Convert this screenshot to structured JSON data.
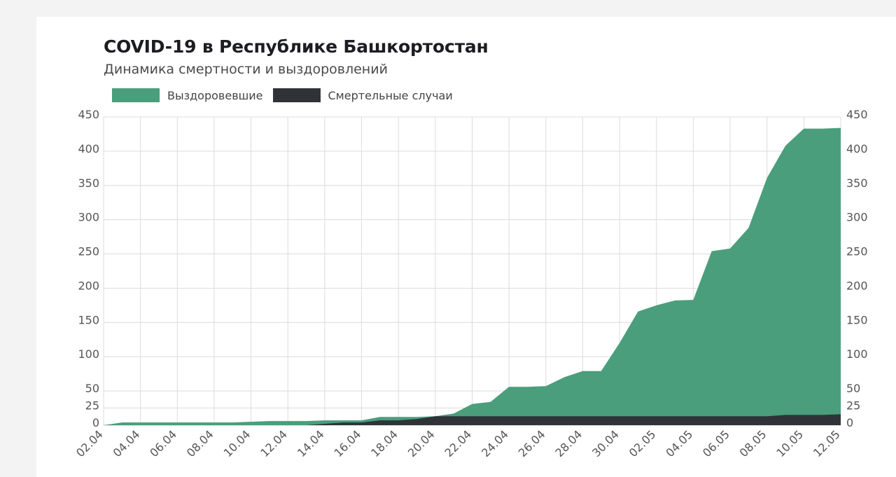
{
  "title": "COVID-19 в Республике Башкортостан",
  "subtitle": "Динамика смертности и выздоровлений",
  "legend": {
    "recovered": "Выздоровевшие",
    "deaths": "Смертельные случаи"
  },
  "colors": {
    "recovered": "#4a9e7c",
    "deaths": "#2f3338",
    "grid": "#dcdcdc"
  },
  "chart_data": {
    "type": "area",
    "title": "COVID-19 в Республике Башкортостан",
    "subtitle": "Динамика смертности и выздоровлений",
    "x": [
      "02.04",
      "03.04",
      "04.04",
      "05.04",
      "06.04",
      "07.04",
      "08.04",
      "09.04",
      "10.04",
      "11.04",
      "12.04",
      "13.04",
      "14.04",
      "15.04",
      "16.04",
      "17.04",
      "18.04",
      "19.04",
      "20.04",
      "21.04",
      "22.04",
      "23.04",
      "24.04",
      "25.04",
      "26.04",
      "27.04",
      "28.04",
      "29.04",
      "30.04",
      "01.05",
      "02.05",
      "03.05",
      "04.05",
      "05.05",
      "06.05",
      "07.05",
      "08.05",
      "09.05",
      "10.05",
      "11.05",
      "12.05"
    ],
    "x_tick_labels": [
      "02.04",
      "04.04",
      "06.04",
      "08.04",
      "10.04",
      "12.04",
      "14.04",
      "16.04",
      "18.04",
      "20.04",
      "22.04",
      "24.04",
      "26.04",
      "28.04",
      "30.04",
      "02.05",
      "04.05",
      "06.05",
      "08.05",
      "10.05",
      "12.05"
    ],
    "series": [
      {
        "name": "Выздоровевшие",
        "values": [
          0,
          4,
          4,
          4,
          4,
          4,
          4,
          4,
          5,
          6,
          6,
          6,
          7,
          7,
          7,
          12,
          12,
          12,
          13,
          17,
          31,
          34,
          56,
          56,
          57,
          70,
          79,
          79,
          120,
          166,
          175,
          182,
          183,
          254,
          258,
          288,
          361,
          408,
          433,
          433,
          434
        ]
      },
      {
        "name": "Смертельные случаи",
        "values": [
          0,
          0,
          0,
          0,
          0,
          0,
          0,
          0,
          0,
          0,
          0,
          0,
          2,
          4,
          4,
          7,
          7,
          9,
          13,
          13,
          13,
          13,
          13,
          13,
          13,
          13,
          13,
          13,
          13,
          13,
          13,
          13,
          13,
          13,
          13,
          13,
          13,
          15,
          15,
          15,
          16
        ]
      }
    ],
    "y_ticks": [
      0,
      25,
      50,
      100,
      150,
      200,
      250,
      300,
      350,
      400,
      450
    ],
    "right_y_ticks": [
      0,
      25,
      50,
      100,
      150,
      200,
      250,
      300,
      350,
      400,
      450
    ],
    "ylim": [
      0,
      450
    ],
    "grid": true,
    "legend_position": "top-left",
    "xlabel": "",
    "ylabel": ""
  }
}
